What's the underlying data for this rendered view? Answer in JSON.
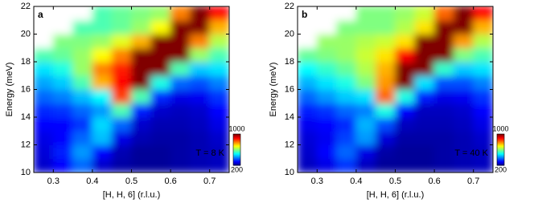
{
  "chart_data": [
    {
      "type": "heatmap",
      "panel_label": "a",
      "annotation": "T = 8 K",
      "x_label": "[H, H, 6] (r.l.u.)",
      "y_label": "Energy (meV)",
      "xlim": [
        0.25,
        0.75
      ],
      "ylim": [
        10,
        22
      ],
      "xticks": [
        0.3,
        0.4,
        0.5,
        0.6,
        0.7
      ],
      "yticks": [
        10,
        12,
        14,
        16,
        18,
        20,
        22
      ],
      "colormap": "jet",
      "colorbar_lim": [
        200,
        1000
      ],
      "colorbar_ticks": [
        1000,
        200
      ],
      "x": [
        0.275,
        0.325,
        0.375,
        0.425,
        0.475,
        0.525,
        0.575,
        0.625,
        0.675,
        0.725
      ],
      "y": [
        10.5,
        11.5,
        12.5,
        13.5,
        14.5,
        15.5,
        16.5,
        17.5,
        18.5,
        19.5,
        20.5,
        21.5
      ],
      "values": [
        [
          260,
          300,
          380,
          260,
          230,
          220,
          220,
          230,
          240,
          250
        ],
        [
          270,
          320,
          420,
          300,
          240,
          220,
          220,
          230,
          240,
          250
        ],
        [
          280,
          300,
          380,
          450,
          280,
          240,
          230,
          230,
          240,
          260
        ],
        [
          300,
          300,
          340,
          470,
          380,
          260,
          240,
          240,
          250,
          280
        ],
        [
          330,
          340,
          380,
          420,
          560,
          320,
          260,
          250,
          260,
          300
        ],
        [
          380,
          400,
          450,
          500,
          850,
          560,
          330,
          280,
          290,
          340
        ],
        [
          430,
          460,
          560,
          760,
          900,
          1000,
          520,
          380,
          360,
          400
        ],
        [
          480,
          520,
          620,
          800,
          880,
          1000,
          1000,
          560,
          460,
          480
        ],
        [
          560,
          580,
          620,
          700,
          800,
          1000,
          1000,
          1000,
          620,
          560
        ],
        [
          null,
          600,
          600,
          620,
          680,
          760,
          1000,
          1000,
          800,
          640
        ],
        [
          null,
          null,
          560,
          560,
          580,
          620,
          700,
          1000,
          1000,
          760
        ],
        [
          null,
          null,
          null,
          560,
          580,
          600,
          620,
          800,
          1000,
          900
        ]
      ]
    },
    {
      "type": "heatmap",
      "panel_label": "b",
      "annotation": "T = 40 K",
      "x_label": "[H, H, 6] (r.l.u.)",
      "y_label": "Energy (meV)",
      "xlim": [
        0.25,
        0.75
      ],
      "ylim": [
        10,
        22
      ],
      "xticks": [
        0.3,
        0.4,
        0.5,
        0.6,
        0.7
      ],
      "yticks": [
        10,
        12,
        14,
        16,
        18,
        20,
        22
      ],
      "colormap": "jet",
      "colorbar_lim": [
        200,
        1000
      ],
      "colorbar_ticks": [
        1000,
        200
      ],
      "x": [
        0.275,
        0.325,
        0.375,
        0.425,
        0.475,
        0.525,
        0.575,
        0.625,
        0.675,
        0.725
      ],
      "y": [
        10.5,
        11.5,
        12.5,
        13.5,
        14.5,
        15.5,
        16.5,
        17.5,
        18.5,
        19.5,
        20.5,
        21.5
      ],
      "values": [
        [
          250,
          280,
          340,
          250,
          220,
          220,
          220,
          230,
          240,
          250
        ],
        [
          260,
          300,
          380,
          280,
          230,
          220,
          220,
          230,
          240,
          250
        ],
        [
          270,
          290,
          350,
          420,
          270,
          230,
          230,
          230,
          240,
          260
        ],
        [
          290,
          300,
          330,
          440,
          360,
          250,
          240,
          240,
          250,
          280
        ],
        [
          320,
          340,
          380,
          400,
          520,
          300,
          250,
          250,
          260,
          300
        ],
        [
          380,
          420,
          460,
          480,
          820,
          520,
          320,
          280,
          290,
          340
        ],
        [
          440,
          480,
          520,
          600,
          780,
          1000,
          480,
          360,
          360,
          400
        ],
        [
          500,
          540,
          580,
          640,
          760,
          1000,
          1000,
          540,
          460,
          480
        ],
        [
          580,
          600,
          620,
          660,
          720,
          900,
          1000,
          1000,
          600,
          560
        ],
        [
          null,
          620,
          620,
          640,
          660,
          720,
          1000,
          1000,
          780,
          640
        ],
        [
          null,
          null,
          600,
          600,
          600,
          640,
          720,
          1000,
          1000,
          760
        ],
        [
          null,
          null,
          null,
          600,
          600,
          620,
          660,
          820,
          1000,
          900
        ]
      ]
    }
  ]
}
